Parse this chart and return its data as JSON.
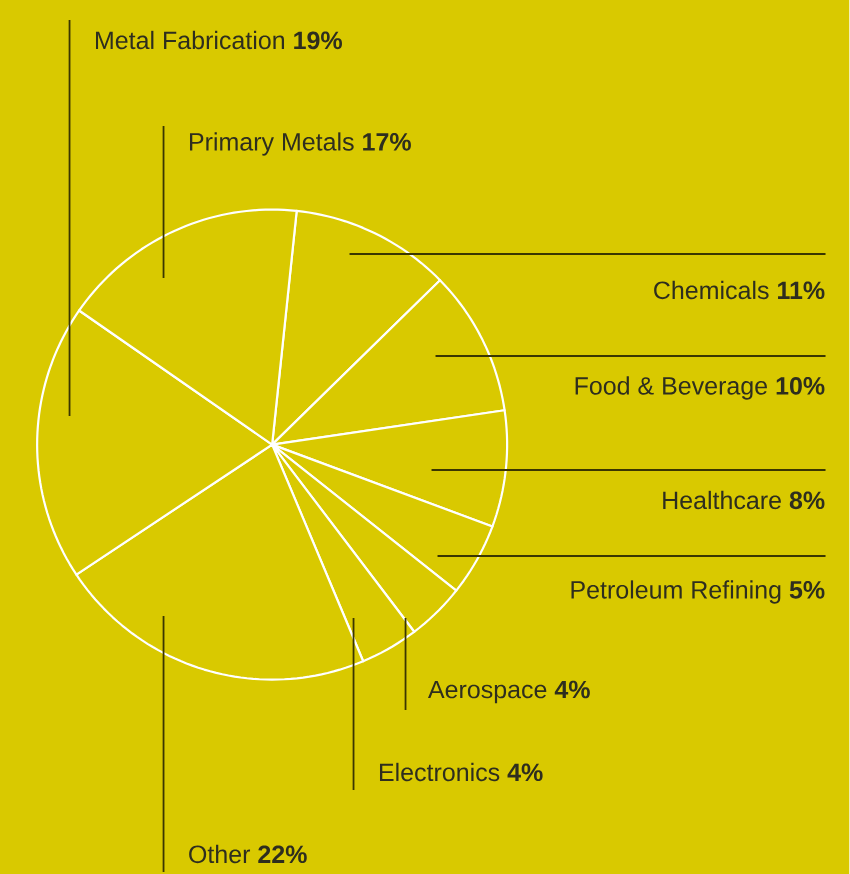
{
  "chart_data": {
    "type": "pie",
    "categories": [
      "Chemicals",
      "Food & Beverage",
      "Healthcare",
      "Petroleum Refining",
      "Aerospace",
      "Electronics",
      "Other",
      "Metal Fabrication",
      "Primary Metals"
    ],
    "values": [
      11,
      10,
      8,
      5,
      4,
      4,
      22,
      19,
      17
    ],
    "value_labels": [
      "11%",
      "10%",
      "8%",
      "5%",
      "4%",
      "4%",
      "22%",
      "19%",
      "17%"
    ],
    "colors": [
      "#d9c900",
      "#d9c900",
      "#d9c900",
      "#d9c900",
      "#d9c900",
      "#d9c900",
      "#d9c900",
      "#d9c900",
      "#d9c900"
    ]
  }
}
